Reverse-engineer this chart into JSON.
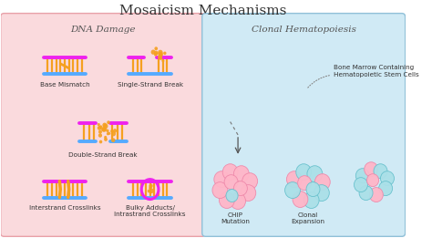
{
  "title": "Mosaicism Mechanisms",
  "title_fontsize": 11,
  "left_panel_title": "DNA Damage",
  "right_panel_title": "Clonal Hematopoiesis",
  "left_bg": "#FADADD",
  "right_bg": "#D0EAF5",
  "left_border": "#E8A0A8",
  "right_border": "#90C0D8",
  "dna_magenta": "#EE22EE",
  "dna_blue": "#55AAFF",
  "dna_orange": "#F5A020",
  "cell_pink": "#FFB6C8",
  "cell_pink_edge": "#EE88AA",
  "cell_cyan": "#AAE0E8",
  "cell_cyan_edge": "#66C0CC",
  "bone_tan": "#D4C090",
  "bone_light": "#E8D8A8",
  "bone_edge": "#B89860",
  "bone_red": "#E84030",
  "labels": {
    "base_mismatch": "Base Mismatch",
    "single_strand": "Single-Strand Break",
    "double_strand": "Double-Strand Break",
    "interstrand": "Interstrand Crosslinks",
    "bulky": "Bulky Adducts/\nIntrastrand Crosslinks",
    "chip": "CHIP\nMutation",
    "clonal": "Clonal\nExpansion",
    "bone_marrow": "Bone Marrow Containing\nHematopoietic Stem Cells"
  },
  "fig_width": 4.74,
  "fig_height": 2.61,
  "dpi": 100
}
